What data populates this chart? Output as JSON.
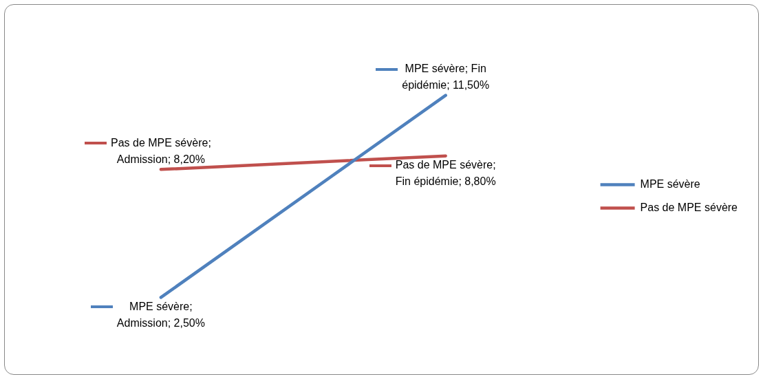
{
  "chart_data": {
    "type": "line",
    "categories": [
      null,
      null
    ],
    "series": [
      {
        "name": "MPE sévère",
        "color": "#4f81bd",
        "values": [
          2.5,
          11.5
        ],
        "value_labels": [
          "MPE sévère; Admission; 2,50%",
          "MPE sévère; Fin épidémie; 11,50%"
        ]
      },
      {
        "name": "Pas de MPE sévère",
        "color": "#c0504d",
        "values": [
          8.2,
          8.8
        ],
        "value_labels": [
          "Pas de MPE sévère; Admission; 8,20%",
          "Pas de MPE sévère; Fin épidémie; 8,80%"
        ]
      }
    ],
    "tick_labels": false,
    "grid": false,
    "legend": "right",
    "marker": "none",
    "line_style": "solid"
  }
}
